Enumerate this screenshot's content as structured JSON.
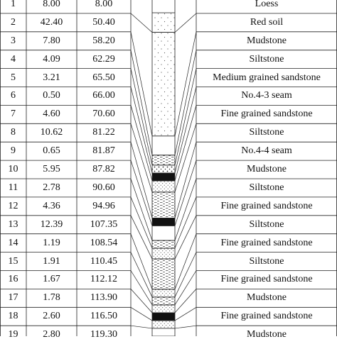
{
  "rows": [
    {
      "no": "1",
      "thickness": "8.00",
      "depth": "8.00",
      "lithology": "Loess",
      "pattern": "dots-sparse"
    },
    {
      "no": "2",
      "thickness": "42.40",
      "depth": "50.40",
      "lithology": "Red soil",
      "pattern": "dots-sparse"
    },
    {
      "no": "3",
      "thickness": "7.80",
      "depth": "58.20",
      "lithology": "Mudstone",
      "pattern": "plain"
    },
    {
      "no": "4",
      "thickness": "4.09",
      "depth": "62.29",
      "lithology": "Siltstone",
      "pattern": "dashes"
    },
    {
      "no": "5",
      "thickness": "3.21",
      "depth": "65.50",
      "lithology": "Medium grained sandstone",
      "pattern": "dots-coarse"
    },
    {
      "no": "6",
      "thickness": "0.50",
      "depth": "66.00",
      "lithology": "No.4-3 seam",
      "pattern": "coal"
    },
    {
      "no": "7",
      "thickness": "4.60",
      "depth": "70.60",
      "lithology": "Fine grained sandstone",
      "pattern": "dots-fine"
    },
    {
      "no": "8",
      "thickness": "10.62",
      "depth": "81.22",
      "lithology": "Siltstone",
      "pattern": "dashes"
    },
    {
      "no": "9",
      "thickness": "0.65",
      "depth": "81.87",
      "lithology": "No.4-4 seam",
      "pattern": "coal"
    },
    {
      "no": "10",
      "thickness": "5.95",
      "depth": "87.82",
      "lithology": "Mudstone",
      "pattern": "plain"
    },
    {
      "no": "11",
      "thickness": "2.78",
      "depth": "90.60",
      "lithology": "Siltstone",
      "pattern": "dashes"
    },
    {
      "no": "12",
      "thickness": "4.36",
      "depth": "94.96",
      "lithology": "Fine grained sandstone",
      "pattern": "dots-fine"
    },
    {
      "no": "13",
      "thickness": "12.39",
      "depth": "107.35",
      "lithology": "Siltstone",
      "pattern": "dashes"
    },
    {
      "no": "14",
      "thickness": "1.19",
      "depth": "108.54",
      "lithology": "Fine grained sandstone",
      "pattern": "dots-fine"
    },
    {
      "no": "15",
      "thickness": "1.91",
      "depth": "110.45",
      "lithology": "Siltstone",
      "pattern": "dashes"
    },
    {
      "no": "16",
      "thickness": "1.67",
      "depth": "112.12",
      "lithology": "Fine grained sandstone",
      "pattern": "dots-fine"
    },
    {
      "no": "17",
      "thickness": "1.78",
      "depth": "113.90",
      "lithology": "Mudstone",
      "pattern": "coal"
    },
    {
      "no": "18",
      "thickness": "2.60",
      "depth": "116.50",
      "lithology": "Fine grained sandstone",
      "pattern": "dots-fine"
    },
    {
      "no": "19",
      "thickness": "2.80",
      "depth": "119.30",
      "lithology": "Mudstone",
      "pattern": "plain"
    }
  ],
  "colors": {
    "line": "#222222",
    "coal": "#111111"
  }
}
